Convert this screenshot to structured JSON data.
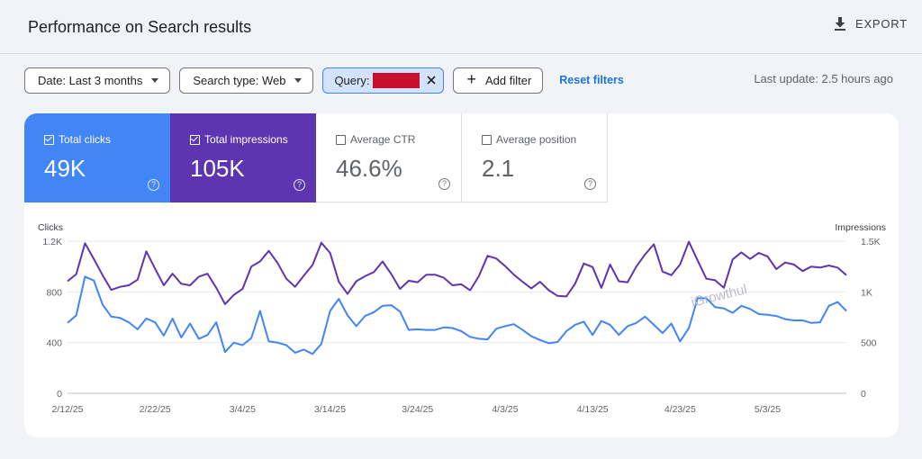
{
  "header": {
    "title": "Performance on Search results",
    "export_label": "EXPORT"
  },
  "filters": {
    "date": "Date: Last 3 months",
    "search_type": "Search type: Web",
    "query_label": "Query:",
    "add_filter": "Add filter",
    "reset": "Reset filters",
    "last_update": "Last update: 2.5 hours ago"
  },
  "metrics": [
    {
      "label": "Total clicks",
      "value": "49K",
      "checked": true
    },
    {
      "label": "Total impressions",
      "value": "105K",
      "checked": true
    },
    {
      "label": "Average CTR",
      "value": "46.6%",
      "checked": false
    },
    {
      "label": "Average position",
      "value": "2.1",
      "checked": false
    }
  ],
  "colors": {
    "clicks": "#4285f4",
    "impressions": "#5e35b1",
    "accent": "#1a73e8"
  },
  "watermark": "iGrowthul",
  "chart_data": {
    "type": "line",
    "left_axis_title": "Clicks",
    "right_axis_title": "Impressions",
    "left_ticks": [
      "1.2K",
      "800",
      "400",
      "0"
    ],
    "right_ticks": [
      "1.5K",
      "1K",
      "500",
      "0"
    ],
    "left_ylim": [
      0,
      1200
    ],
    "right_ylim": [
      0,
      1500
    ],
    "x_ticks": [
      "2/12/25",
      "2/22/25",
      "3/4/25",
      "3/14/25",
      "3/24/25",
      "4/3/25",
      "4/13/25",
      "4/23/25",
      "5/3/25"
    ],
    "x_start": "2/12/25",
    "grid": true,
    "series": [
      {
        "name": "Clicks",
        "axis": "left",
        "values": [
          555,
          615,
          920,
          890,
          700,
          605,
          595,
          560,
          505,
          590,
          560,
          455,
          590,
          440,
          550,
          430,
          460,
          560,
          325,
          400,
          380,
          435,
          650,
          410,
          400,
          380,
          320,
          345,
          310,
          390,
          650,
          745,
          615,
          530,
          610,
          640,
          690,
          695,
          645,
          500,
          505,
          500,
          500,
          520,
          515,
          490,
          445,
          430,
          425,
          510,
          530,
          545,
          500,
          450,
          420,
          395,
          405,
          490,
          540,
          565,
          460,
          570,
          540,
          460,
          530,
          555,
          605,
          540,
          475,
          550,
          410,
          515,
          750,
          750,
          680,
          670,
          635,
          690,
          665,
          625,
          620,
          610,
          585,
          575,
          575,
          555,
          560,
          690,
          720,
          650
        ]
      },
      {
        "name": "Impressions",
        "axis": "right",
        "values": [
          1105,
          1175,
          1480,
          1325,
          1165,
          1020,
          1050,
          1065,
          1120,
          1400,
          1230,
          1065,
          1180,
          1080,
          1065,
          1150,
          1180,
          1040,
          880,
          970,
          1030,
          1250,
          1300,
          1405,
          1285,
          1130,
          1050,
          1160,
          1265,
          1485,
          1385,
          1100,
          980,
          1105,
          1155,
          1195,
          1300,
          1175,
          1030,
          1110,
          1095,
          1170,
          1170,
          1140,
          1065,
          1075,
          1015,
          1155,
          1355,
          1330,
          1255,
          1170,
          1100,
          1035,
          1100,
          1015,
          960,
          955,
          1080,
          1280,
          1245,
          1040,
          1270,
          1105,
          1095,
          1250,
          1370,
          1470,
          1200,
          1165,
          1270,
          1495,
          1310,
          1130,
          1115,
          1040,
          1320,
          1390,
          1325,
          1385,
          1350,
          1225,
          1290,
          1270,
          1205,
          1250,
          1240,
          1260,
          1240,
          1165
        ]
      }
    ]
  }
}
